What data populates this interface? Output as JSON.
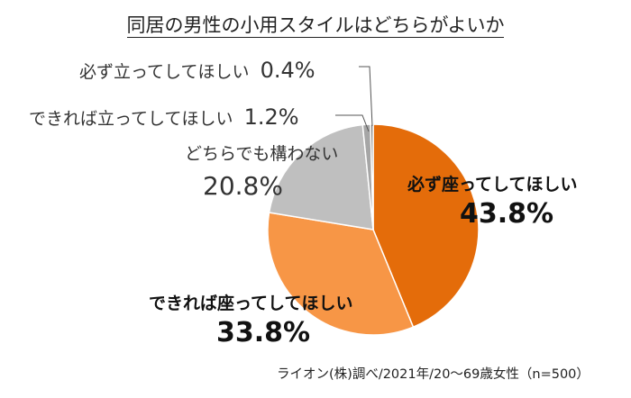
{
  "chart_data": {
    "type": "pie",
    "title": "同居の男性の小用スタイルはどちらがよいか",
    "slices": [
      {
        "label": "必ず座ってしてほしい",
        "value": 43.8,
        "display": "43.8%",
        "color": "#E46C0A"
      },
      {
        "label": "できれば座ってしてほしい",
        "value": 33.8,
        "display": "33.8%",
        "color": "#F79646"
      },
      {
        "label": "どちらでも構わない",
        "value": 20.8,
        "display": "20.8%",
        "color": "#BFBFBF"
      },
      {
        "label": "できれば立ってしてほしい",
        "value": 1.2,
        "display": "1.2%",
        "color": "#A6A6A6"
      },
      {
        "label": "必ず立ってしてほしい",
        "value": 0.4,
        "display": "0.4%",
        "color": "#7F7F7F"
      }
    ],
    "source": "ライオン(株)調べ/2021年/20～69歳女性（n=500）"
  }
}
